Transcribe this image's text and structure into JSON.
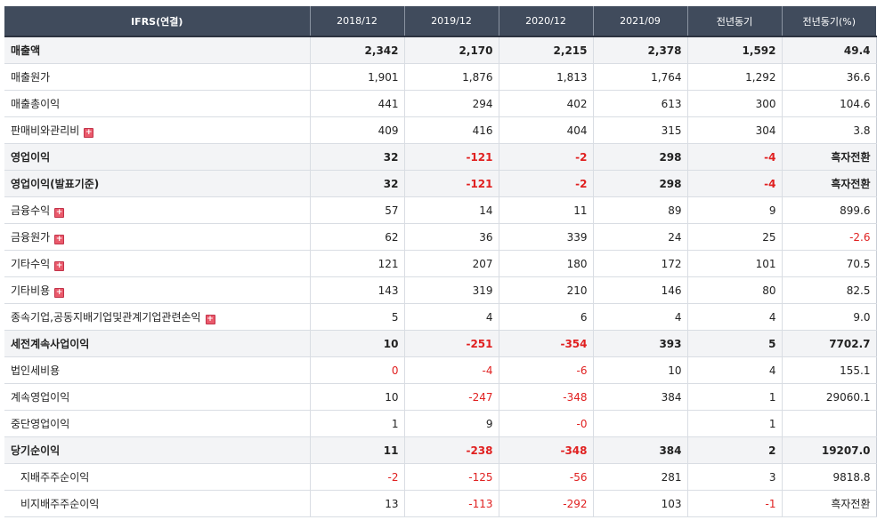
{
  "table": {
    "headers": [
      "IFRS(연결)",
      "2018/12",
      "2019/12",
      "2020/12",
      "2021/09",
      "전년동기",
      "전년동기(%)"
    ],
    "rows": [
      {
        "label": "매출액",
        "values": [
          "2,342",
          "2,170",
          "2,215",
          "2,378",
          "1,592",
          "49.4"
        ]
      },
      {
        "label": "매출원가",
        "values": [
          "1,901",
          "1,876",
          "1,813",
          "1,764",
          "1,292",
          "36.6"
        ]
      },
      {
        "label": "매출총이익",
        "values": [
          "441",
          "294",
          "402",
          "613",
          "300",
          "104.6"
        ]
      },
      {
        "label": "판매비와관리비",
        "values": [
          "409",
          "416",
          "404",
          "315",
          "304",
          "3.8"
        ]
      },
      {
        "label": "영업이익",
        "values": [
          "32",
          "-121",
          "-2",
          "298",
          "-4",
          "흑자전환"
        ]
      },
      {
        "label": "영업이익(발표기준)",
        "values": [
          "32",
          "-121",
          "-2",
          "298",
          "-4",
          "흑자전환"
        ]
      },
      {
        "label": "금융수익",
        "values": [
          "57",
          "14",
          "11",
          "89",
          "9",
          "899.6"
        ]
      },
      {
        "label": "금융원가",
        "values": [
          "62",
          "36",
          "339",
          "24",
          "25",
          "-2.6"
        ]
      },
      {
        "label": "기타수익",
        "values": [
          "121",
          "207",
          "180",
          "172",
          "101",
          "70.5"
        ]
      },
      {
        "label": "기타비용",
        "values": [
          "143",
          "319",
          "210",
          "146",
          "80",
          "82.5"
        ]
      },
      {
        "label": "종속기업,공동지배기업및관계기업관련손익",
        "values": [
          "5",
          "4",
          "6",
          "4",
          "4",
          "9.0"
        ]
      },
      {
        "label": "세전계속사업이익",
        "values": [
          "10",
          "-251",
          "-354",
          "393",
          "5",
          "7702.7"
        ]
      },
      {
        "label": "법인세비용",
        "values": [
          "0",
          "-4",
          "-6",
          "10",
          "4",
          "155.1"
        ]
      },
      {
        "label": "계속영업이익",
        "values": [
          "10",
          "-247",
          "-348",
          "384",
          "1",
          "29060.1"
        ]
      },
      {
        "label": "중단영업이익",
        "values": [
          "1",
          "9",
          "-0",
          "",
          "1",
          ""
        ]
      },
      {
        "label": "당기순이익",
        "values": [
          "11",
          "-238",
          "-348",
          "384",
          "2",
          "19207.0"
        ]
      },
      {
        "label": "지배주주순이익",
        "values": [
          "-2",
          "-125",
          "-56",
          "281",
          "3",
          "9818.8"
        ]
      },
      {
        "label": "비지배주주순이익",
        "values": [
          "13",
          "-113",
          "-292",
          "103",
          "-1",
          "흑자전환"
        ]
      }
    ]
  },
  "icons": {
    "expand_icon": "plus-square-icon",
    "expand_color": "#ea5a6b",
    "negative_color": "#e02020",
    "header_bg": "#404b5c"
  }
}
